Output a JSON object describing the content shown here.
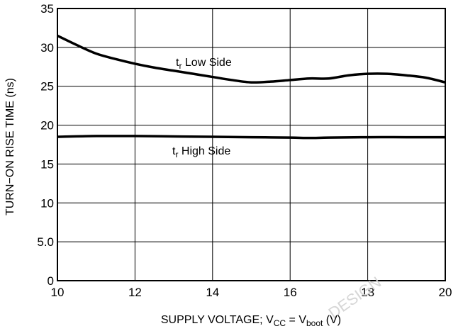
{
  "chart_data": {
    "type": "line",
    "xlabel": "SUPPLY VOLTAGE; V_CC = V_boot (V)",
    "xlabel_parts": {
      "prefix": "SUPPLY VOLTAGE; V",
      "sub1": "CC",
      "middle": " = V",
      "sub2": "boot",
      "suffix": " (V)"
    },
    "ylabel": "TURN−ON RISE TIME (ns)",
    "xlim": [
      10,
      20
    ],
    "ylim": [
      0,
      35
    ],
    "x_ticks": [
      10,
      12,
      14,
      16,
      18,
      20
    ],
    "x_tick_labels": [
      "10",
      "12",
      "14",
      "16",
      "18",
      "20"
    ],
    "y_ticks": [
      0,
      5,
      10,
      15,
      20,
      25,
      30,
      35
    ],
    "y_tick_labels": [
      "0",
      "5.0",
      "10",
      "15",
      "20",
      "25",
      "30",
      "35"
    ],
    "grid": true,
    "series": [
      {
        "name": "tr Low Side",
        "label_parts": {
          "main": "t",
          "sub": "r",
          "rest": " Low Side"
        },
        "x": [
          10,
          10.5,
          11,
          11.5,
          12,
          12.5,
          13,
          13.5,
          14,
          14.5,
          15,
          15.5,
          16,
          16.5,
          17,
          17.5,
          18,
          18.5,
          19,
          19.5,
          20
        ],
        "y": [
          31.5,
          30.3,
          29.2,
          28.5,
          27.9,
          27.4,
          27.0,
          26.6,
          26.2,
          25.8,
          25.5,
          25.6,
          25.8,
          26.0,
          26.0,
          26.4,
          26.6,
          26.6,
          26.4,
          26.1,
          25.5
        ]
      },
      {
        "name": "tr High Side",
        "label_parts": {
          "main": "t",
          "sub": "r",
          "rest": " High Side"
        },
        "x": [
          10,
          11,
          12,
          13,
          14,
          15,
          16,
          16.5,
          17,
          18,
          19,
          20
        ],
        "y": [
          18.5,
          18.6,
          18.6,
          18.55,
          18.5,
          18.45,
          18.4,
          18.35,
          18.4,
          18.45,
          18.45,
          18.45
        ]
      }
    ],
    "watermark": "DESIGN"
  }
}
